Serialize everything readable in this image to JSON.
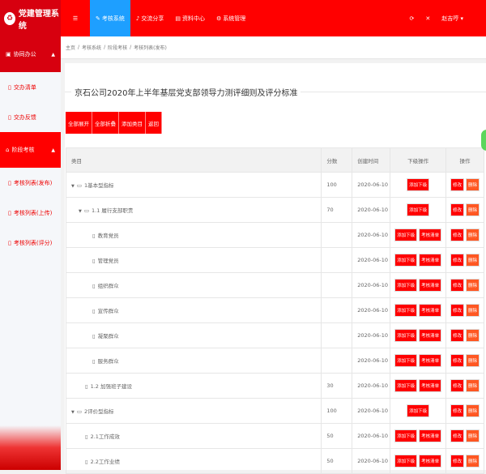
{
  "app": {
    "title": "党建管理系统",
    "logo_char": "♻"
  },
  "header": {
    "nav": [
      {
        "label": "考核系统",
        "icon": "pen-icon",
        "active": true
      },
      {
        "label": "交流分享",
        "icon": "bell-icon"
      },
      {
        "label": "资料中心",
        "icon": "folder-icon"
      },
      {
        "label": "系统管理",
        "icon": "gear-icon"
      }
    ],
    "user": "赵吉哼"
  },
  "sidebar": {
    "groups": [
      {
        "label": "协同办公",
        "items": [
          {
            "label": "交办清单"
          },
          {
            "label": "交办反馈"
          }
        ]
      },
      {
        "label": "阶段考核",
        "items": [
          {
            "label": "考核列表(发布)"
          },
          {
            "label": "考核列表(上传)"
          },
          {
            "label": "考核列表(评分)"
          }
        ]
      }
    ]
  },
  "breadcrumb": [
    "主页",
    "考核系统",
    "阶段考核",
    "考核列表(发布)"
  ],
  "page": {
    "title": "京石公司2020年上半年基层党支部领导力测评细则及评分标准",
    "buttons": [
      "全部展开",
      "全部折叠",
      "添加类目",
      "返回"
    ]
  },
  "table": {
    "headers": [
      "类目",
      "分数",
      "创建时间",
      "下级操作",
      "操作"
    ],
    "actions": {
      "add": "添加下级",
      "list": "考核清单",
      "edit": "修改",
      "delete": "删除"
    },
    "rows": [
      {
        "name": "1基本型指标",
        "score": "100",
        "date": "2020-06-10",
        "level": 0,
        "folder": true,
        "list": false
      },
      {
        "name": "1.1 履行支部职责",
        "score": "70",
        "date": "2020-06-10",
        "level": 1,
        "folder": true,
        "list": false
      },
      {
        "name": "教育党员",
        "score": "",
        "date": "2020-06-10",
        "level": 2,
        "folder": false,
        "list": true
      },
      {
        "name": "管理党员",
        "score": "",
        "date": "2020-06-10",
        "level": 2,
        "folder": false,
        "list": true
      },
      {
        "name": "组织群众",
        "score": "",
        "date": "2020-06-10",
        "level": 2,
        "folder": false,
        "list": true
      },
      {
        "name": "宣传群众",
        "score": "",
        "date": "2020-06-10",
        "level": 2,
        "folder": false,
        "list": true
      },
      {
        "name": "凝聚群众",
        "score": "",
        "date": "2020-06-10",
        "level": 2,
        "folder": false,
        "list": true
      },
      {
        "name": "服务群众",
        "score": "",
        "date": "2020-06-10",
        "level": 2,
        "folder": false,
        "list": true
      },
      {
        "name": "1.2 加强班子建设",
        "score": "30",
        "date": "2020-06-10",
        "level": 1,
        "folder": false,
        "list": true
      },
      {
        "name": "2评价型指标",
        "score": "100",
        "date": "2020-06-10",
        "level": 0,
        "folder": true,
        "list": false
      },
      {
        "name": "2.1工作成效",
        "score": "50",
        "date": "2020-06-10",
        "level": 1,
        "folder": false,
        "list": true
      },
      {
        "name": "2.2工作业绩",
        "score": "50",
        "date": "2020-06-10",
        "level": 1,
        "folder": false,
        "list": true
      }
    ]
  },
  "colors": {
    "header": "#ff0000",
    "logo_bg": "#d7000f",
    "active_tab": "#1e9fff",
    "delete": "#ff5722"
  }
}
